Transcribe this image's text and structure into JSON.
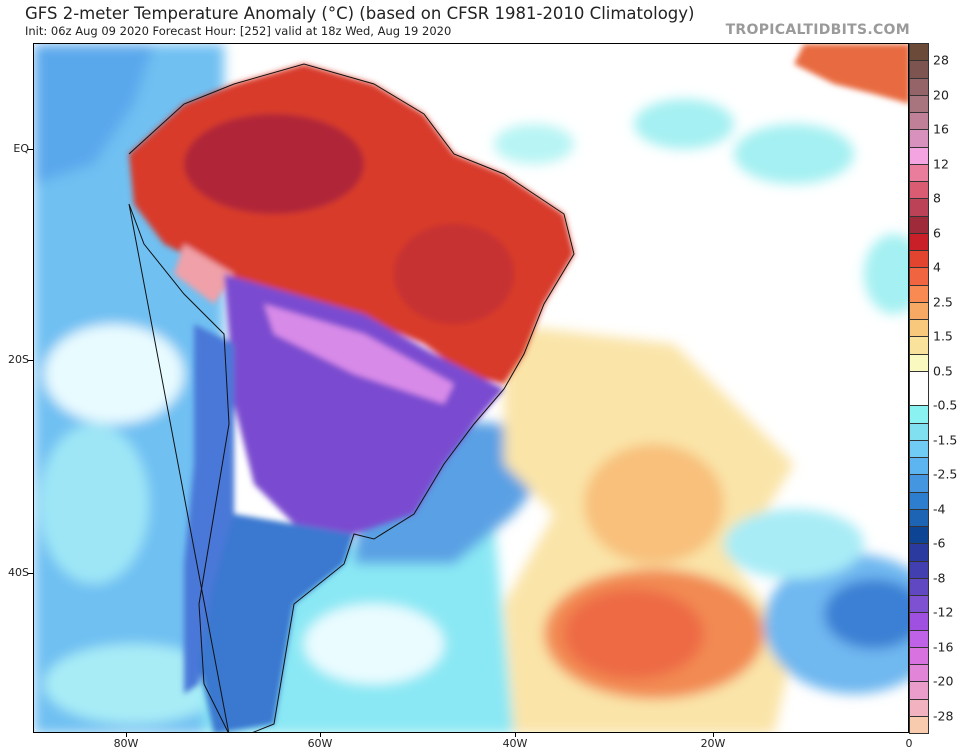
{
  "header": {
    "title": "GFS 2-meter Temperature Anomaly (°C) (based on CFSR 1981-2010 Climatology)",
    "subtitle": "Init: 06z Aug 09 2020   Forecast Hour: [252]   valid at 18z Wed, Aug 19 2020",
    "watermark": "TROPICALTIDBITS.COM"
  },
  "axes": {
    "lat_labels": [
      "EQ",
      "20S",
      "40S"
    ],
    "lon_labels": [
      "80W",
      "60W",
      "40W",
      "20W",
      "0"
    ]
  },
  "colorbar": {
    "labels": [
      "28",
      "20",
      "16",
      "12",
      "8",
      "6",
      "4",
      "2.5",
      "1.5",
      "0.5",
      "-0.5",
      "-1.5",
      "-2.5",
      "-4",
      "-6",
      "-8",
      "-12",
      "-16",
      "-20",
      "-28"
    ],
    "colors": [
      "#6b4a3a",
      "#7d5450",
      "#946468",
      "#a8757f",
      "#c08098",
      "#d890bc",
      "#f4a4e0",
      "#ea7c9c",
      "#da5c72",
      "#bc4258",
      "#9e2a3a",
      "#c81f28",
      "#e24430",
      "#f06440",
      "#f88a52",
      "#f8aa64",
      "#f8c87c",
      "#f8e29c",
      "#fafac0",
      "#ffffff",
      "#ffffff",
      "#8af2f0",
      "#80e0f0",
      "#70ccf4",
      "#5cb4f0",
      "#4496e0",
      "#2e7ed0",
      "#1e64b4",
      "#0e4494",
      "#2a3a9e",
      "#4240b0",
      "#6048c2",
      "#7e50d2",
      "#a050e0",
      "#c062e8",
      "#d872e0",
      "#e284d8",
      "#ea9cca",
      "#f2b2c0",
      "#f8caae"
    ]
  },
  "map_colors": {
    "ocean_cold": "#6cb8f0",
    "ocean_cool": "#8af2f0",
    "land_warm": "#d83a2c",
    "land_cold": "#7a4cd0",
    "ocean_warm": "#f8c87c",
    "ocean_hot": "#f06440"
  }
}
